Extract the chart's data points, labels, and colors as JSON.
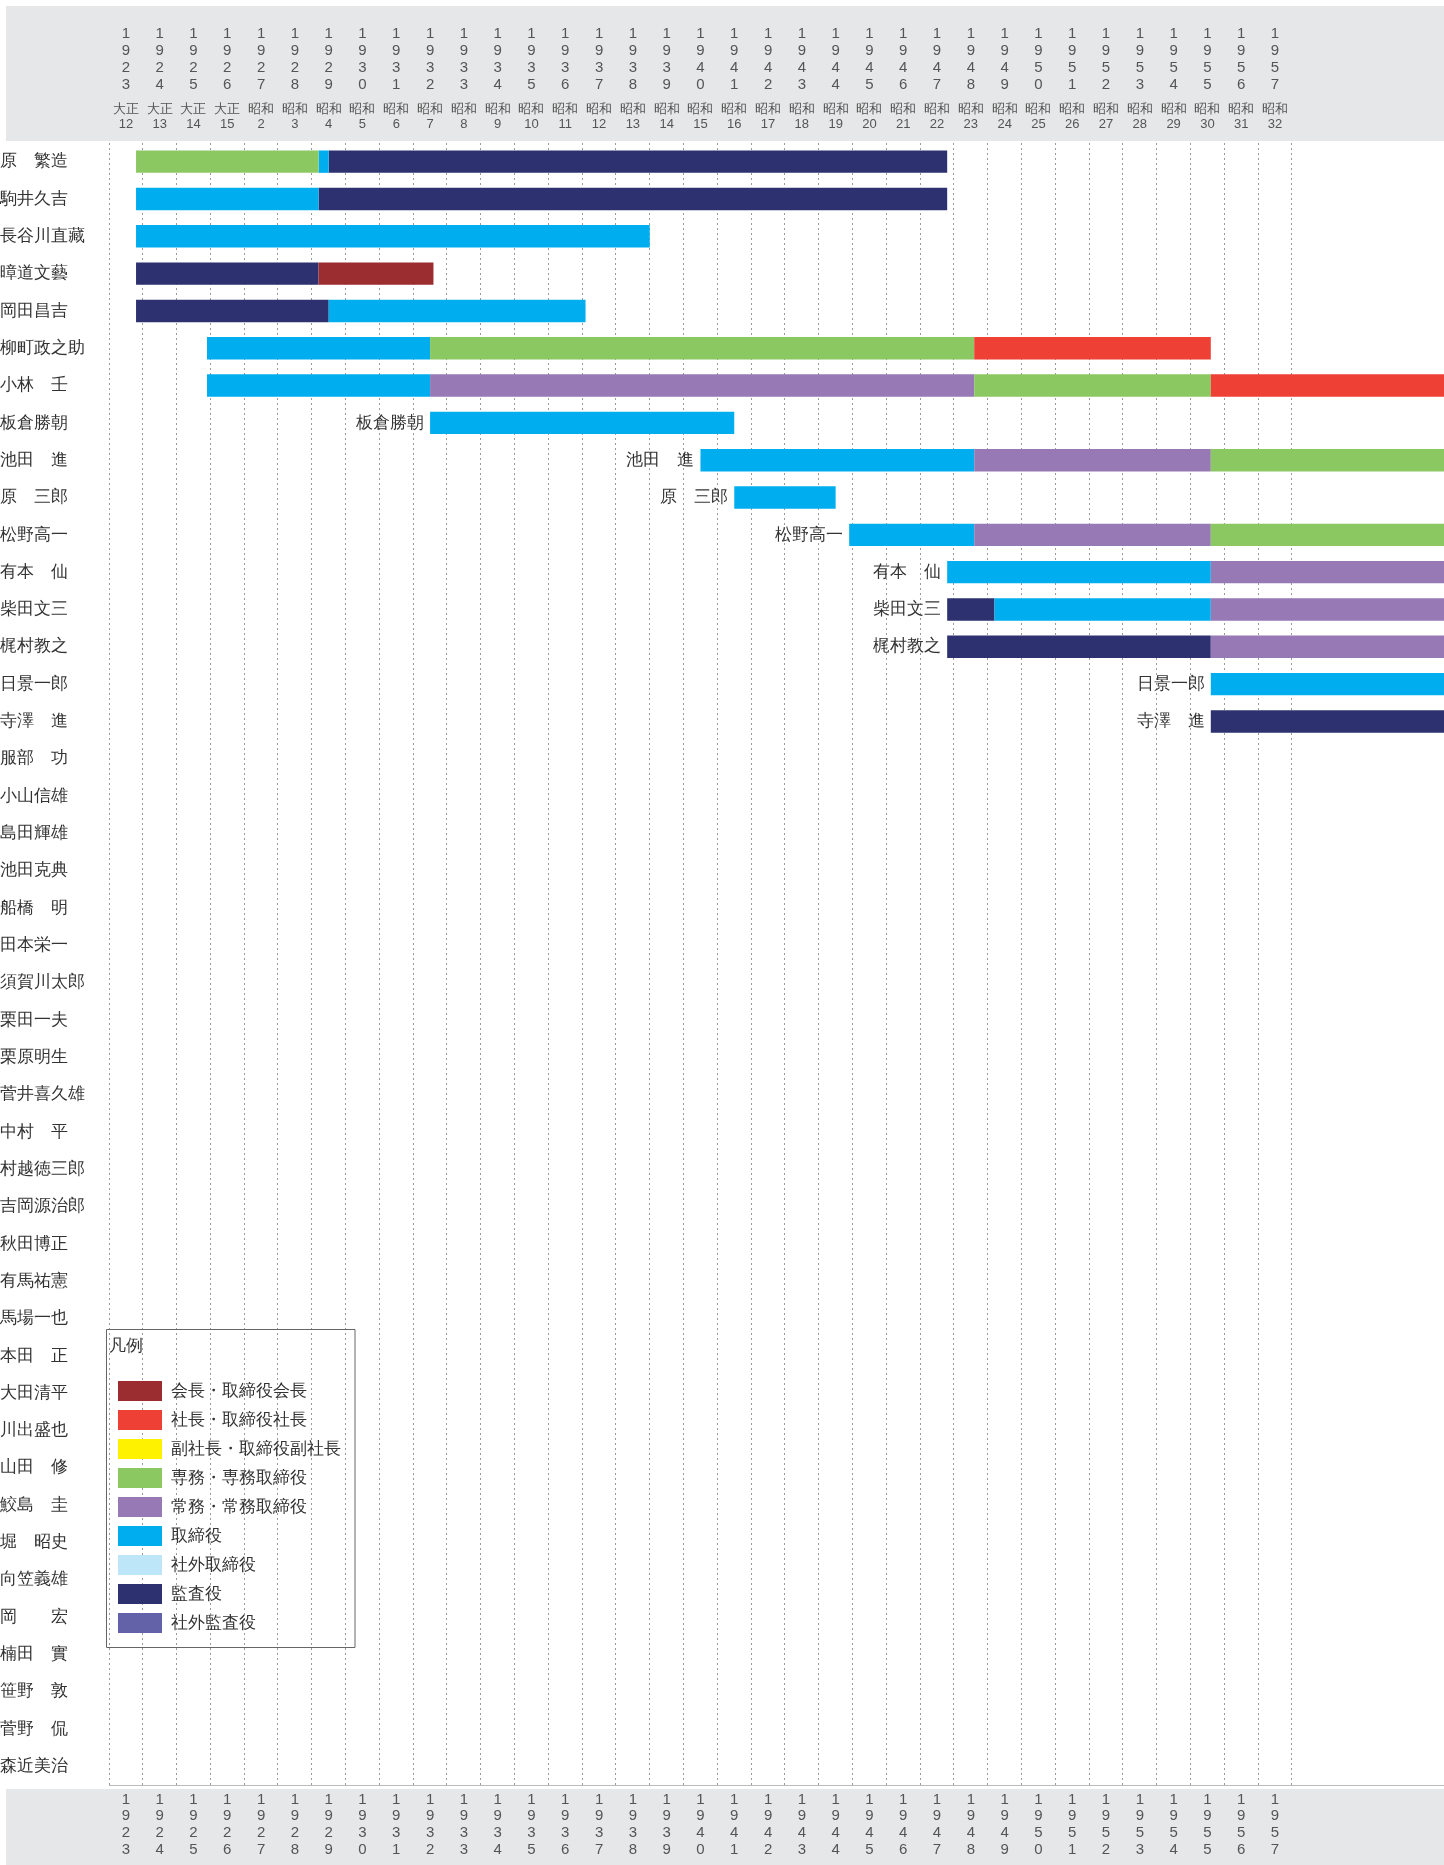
{
  "chart_data": {
    "type": "bar",
    "orientation": "horizontal",
    "legend": "bottom left",
    "legend_title": "凡例",
    "grid": "x",
    "categories": [
      "原　繁造",
      "駒井久吉",
      "長谷川直藏",
      "暲道文藝",
      "岡田昌吉",
      "柳町政之助",
      "小林　壬",
      "板倉勝朝",
      "池田　進",
      "原　三郎",
      "松野高一",
      "有本　仙",
      "柴田文三",
      "梶村教之",
      "日景一郎",
      "寺澤　進",
      "服部　功",
      "小山信雄",
      "島田輝雄",
      "池田克典",
      "船橋　明",
      "田本栄一",
      "須賀川太郎",
      "栗田一夫",
      "栗原明生",
      "菅井喜久雄",
      "中村　平",
      "村越徳三郎",
      "吉岡源治郎",
      "秋田博正",
      "有馬祐憲",
      "馬場一也",
      "本田　正",
      "大田清平",
      "川出盛也",
      "山田　修",
      "鮫島　圭",
      "堀　昭史",
      "向笠義雄",
      "岡　　宏",
      "楠田　實",
      "笹野　敦",
      "菅野　侃",
      "森近美治"
    ],
    "xlim": [
      1922.5,
      1962
    ],
    "xticks": [
      1923,
      1924,
      1925,
      1926,
      1927,
      1928,
      1929,
      1930,
      1931,
      1932,
      1933,
      1934,
      1935,
      1936,
      1937,
      1938,
      1939,
      1940,
      1941,
      1942,
      1943,
      1944,
      1945,
      1946,
      1947,
      1948,
      1949,
      1950,
      1951,
      1952,
      1953,
      1954,
      1955,
      1956,
      1957
    ],
    "x2lim": [
      1922.5,
      1962
    ],
    "x2ticks": [
      1923,
      1924,
      1925,
      1926,
      1927,
      1928,
      1929,
      1930,
      1931,
      1932,
      1933,
      1934,
      1935,
      1936,
      1937,
      1938,
      1939,
      1940,
      1941,
      1942,
      1943,
      1944,
      1945,
      1946,
      1947,
      1948,
      1949,
      1950,
      1951,
      1952,
      1953,
      1954,
      1955,
      1956,
      1957
    ],
    "series": [
      {
        "name": "会長・取締役会長",
        "color": "#9b2d30",
        "base": [
          null,
          null,
          null,
          1928.7,
          null,
          null,
          null,
          null,
          null,
          null,
          null,
          null,
          null,
          null,
          null,
          null,
          null,
          null,
          null,
          null,
          null,
          null,
          null,
          null,
          null,
          null,
          null,
          null,
          null,
          null,
          null,
          null,
          null,
          null,
          null,
          null,
          null,
          null,
          null,
          null,
          null,
          null,
          null,
          null
        ],
        "values": [
          null,
          null,
          null,
          3.4,
          null,
          null,
          null,
          null,
          null,
          null,
          null,
          null,
          null,
          null,
          null,
          null,
          null,
          null,
          null,
          null,
          null,
          null,
          null,
          null,
          null,
          null,
          null,
          null,
          null,
          null,
          null,
          null,
          null,
          null,
          null,
          null,
          null,
          null,
          null,
          null,
          null,
          null,
          null,
          null
        ]
      },
      {
        "name": "社長・取締役社長",
        "color": "#ee4035",
        "base": [
          null,
          null,
          null,
          null,
          null,
          1948.1,
          1955.1,
          null,
          null,
          null,
          null,
          null,
          null,
          null,
          null,
          null,
          null,
          null,
          null,
          null,
          null,
          null,
          null,
          null,
          null,
          null,
          null,
          null,
          null,
          null,
          null,
          null,
          null,
          null,
          null,
          null,
          null,
          null,
          null,
          null,
          null,
          null,
          null,
          null
        ],
        "values": [
          null,
          null,
          null,
          null,
          null,
          7.0,
          6.9,
          null,
          null,
          null,
          null,
          null,
          null,
          null,
          null,
          null,
          null,
          null,
          null,
          null,
          null,
          null,
          null,
          null,
          null,
          null,
          null,
          null,
          null,
          null,
          null,
          null,
          null,
          null,
          null,
          null,
          null,
          null,
          null,
          null,
          null,
          null,
          null,
          null
        ]
      },
      {
        "name": "副社長・取締役副社長",
        "color": "#fff200",
        "base": [
          null,
          null,
          null,
          null,
          null,
          null,
          null,
          null,
          null,
          null,
          null,
          null,
          null,
          null,
          null,
          null,
          null,
          null,
          null,
          null,
          null,
          null,
          null,
          null,
          null,
          null,
          null,
          null,
          null,
          null,
          null,
          null,
          null,
          null,
          null,
          null,
          null,
          null,
          null,
          null,
          null,
          null,
          null,
          null
        ],
        "values": [
          null,
          null,
          null,
          null,
          null,
          null,
          null,
          null,
          null,
          null,
          null,
          null,
          null,
          null,
          null,
          null,
          null,
          null,
          null,
          null,
          null,
          null,
          null,
          null,
          null,
          null,
          null,
          null,
          null,
          null,
          null,
          null,
          null,
          null,
          null,
          null,
          null,
          null,
          null,
          null,
          null,
          null,
          null,
          null
        ]
      },
      {
        "name": "専務・専務取締役",
        "color": "#8cc862",
        "base": [
          1923.3,
          null,
          null,
          null,
          null,
          1932.0,
          1948.1,
          null,
          1955.1,
          null,
          1955.1,
          null,
          null,
          null,
          null,
          null,
          null,
          null,
          null,
          null,
          null,
          null,
          null,
          null,
          null,
          null,
          null,
          null,
          null,
          null,
          null,
          null,
          null,
          null,
          null,
          null,
          null,
          null,
          null,
          null,
          null,
          null,
          null,
          null
        ],
        "values": [
          5.4,
          null,
          null,
          null,
          null,
          16.1,
          7.0,
          null,
          6.9,
          null,
          6.9,
          null,
          null,
          null,
          null,
          null,
          null,
          null,
          null,
          null,
          null,
          null,
          null,
          null,
          null,
          null,
          null,
          null,
          null,
          null,
          null,
          null,
          null,
          null,
          null,
          null,
          null,
          null,
          null,
          null,
          null,
          null,
          null,
          null
        ]
      },
      {
        "name": "常務・常務取締役",
        "color": "#9779b5",
        "base": [
          null,
          null,
          null,
          null,
          null,
          null,
          1932.0,
          null,
          1948.1,
          null,
          1948.1,
          1955.1,
          1955.1,
          1955.1,
          null,
          null,
          null,
          null,
          null,
          null,
          null,
          null,
          null,
          null,
          null,
          null,
          null,
          null,
          null,
          null,
          null,
          null,
          null,
          null,
          null,
          null,
          null,
          null,
          null,
          null,
          null,
          null,
          null,
          null
        ],
        "values": [
          null,
          null,
          null,
          null,
          null,
          null,
          16.1,
          null,
          7.0,
          null,
          7.0,
          6.9,
          6.9,
          6.9,
          null,
          null,
          null,
          null,
          null,
          null,
          null,
          null,
          null,
          null,
          null,
          null,
          null,
          null,
          null,
          null,
          null,
          null,
          null,
          null,
          null,
          null,
          null,
          null,
          null,
          null,
          null,
          null,
          null,
          null
        ]
      },
      {
        "name": "取締役",
        "color": "#00aeef",
        "base": [
          1928.7,
          1923.3,
          1923.3,
          null,
          1929.0,
          1925.4,
          1925.4,
          1932.0,
          1940.0,
          1941.0,
          1944.4,
          1947.3,
          1948.7,
          null,
          1955.1,
          null,
          null,
          null,
          null,
          null,
          null,
          null,
          null,
          null,
          null,
          null,
          null,
          null,
          null,
          null,
          null,
          null,
          null,
          null,
          null,
          null,
          null,
          null,
          null,
          null,
          null,
          null,
          null,
          null
        ],
        "values": [
          0.3,
          5.4,
          15.2,
          null,
          7.6,
          6.6,
          6.6,
          9.0,
          8.1,
          3.0,
          3.7,
          7.8,
          6.4,
          null,
          6.9,
          null,
          null,
          null,
          null,
          null,
          null,
          null,
          null,
          null,
          null,
          null,
          null,
          null,
          null,
          null,
          null,
          null,
          null,
          null,
          null,
          null,
          null,
          null,
          null,
          null,
          null,
          null,
          null,
          null
        ]
      },
      {
        "name": "社外取締役",
        "color": "#bde6f8",
        "base": [
          null,
          null,
          null,
          null,
          null,
          null,
          null,
          null,
          null,
          null,
          null,
          null,
          null,
          null,
          null,
          null,
          null,
          null,
          null,
          null,
          null,
          null,
          null,
          null,
          null,
          null,
          null,
          null,
          null,
          null,
          null,
          null,
          null,
          null,
          null,
          null,
          null,
          null,
          null,
          null,
          null,
          null,
          null,
          null
        ],
        "values": [
          null,
          null,
          null,
          null,
          null,
          null,
          null,
          null,
          null,
          null,
          null,
          null,
          null,
          null,
          null,
          null,
          null,
          null,
          null,
          null,
          null,
          null,
          null,
          null,
          null,
          null,
          null,
          null,
          null,
          null,
          null,
          null,
          null,
          null,
          null,
          null,
          null,
          null,
          null,
          null,
          null,
          null,
          null,
          null
        ]
      },
      {
        "name": "監査役",
        "color": "#2e3170",
        "base": [
          1929.0,
          1928.7,
          null,
          1923.3,
          1923.3,
          null,
          null,
          null,
          null,
          null,
          null,
          null,
          1947.3,
          1947.3,
          null,
          1955.1,
          null,
          null,
          null,
          null,
          null,
          null,
          null,
          null,
          null,
          null,
          null,
          null,
          null,
          null,
          null,
          null,
          null,
          null,
          null,
          null,
          null,
          null,
          null,
          null,
          null,
          null,
          null,
          null
        ],
        "values": [
          18.3,
          18.6,
          null,
          5.4,
          5.7,
          null,
          null,
          null,
          null,
          null,
          null,
          null,
          1.4,
          7.8,
          null,
          6.9,
          null,
          null,
          null,
          null,
          null,
          null,
          null,
          null,
          null,
          null,
          null,
          null,
          null,
          null,
          null,
          null,
          null,
          null,
          null,
          null,
          null,
          null,
          null,
          null,
          null,
          null,
          null,
          null
        ]
      },
      {
        "name": "社外監査役",
        "color": "#6361a8",
        "base": [
          null,
          null,
          null,
          null,
          null,
          null,
          null,
          null,
          null,
          null,
          null,
          null,
          null,
          null,
          null,
          null,
          null,
          null,
          null,
          null,
          null,
          null,
          null,
          null,
          null,
          null,
          null,
          null,
          null,
          null,
          null,
          null,
          null,
          null,
          null,
          null,
          null,
          null,
          null,
          null,
          null,
          null,
          null,
          null
        ],
        "values": [
          null,
          null,
          null,
          null,
          null,
          null,
          null,
          null,
          null,
          null,
          null,
          null,
          null,
          null,
          null,
          null,
          null,
          null,
          null,
          null,
          null,
          null,
          null,
          null,
          null,
          null,
          null,
          null,
          null,
          null,
          null,
          null,
          null,
          null,
          null,
          null,
          null,
          null,
          null,
          null,
          null,
          null,
          null,
          null
        ]
      }
    ],
    "annotations": [
      {
        "text": "板倉勝朝",
        "x": 1932.0,
        "y": "板倉勝朝"
      },
      {
        "text": "池田　進",
        "x": 1940.0,
        "y": "池田　進"
      },
      {
        "text": "原　三郎",
        "x": 1941.0,
        "y": "原　三郎"
      },
      {
        "text": "松野高一",
        "x": 1944.4,
        "y": "松野高一"
      },
      {
        "text": "有本　仙",
        "x": 1947.3,
        "y": "有本　仙"
      },
      {
        "text": "柴田文三",
        "x": 1947.3,
        "y": "柴田文三"
      },
      {
        "text": "梶村教之",
        "x": 1947.3,
        "y": "梶村教之"
      },
      {
        "text": "日景一郎",
        "x": 1955.1,
        "y": "日景一郎"
      },
      {
        "text": "寺澤　進",
        "x": 1955.1,
        "y": "寺澤　進"
      },
      "大正12",
      "大正13",
      "大正14",
      "大正15",
      "昭和2",
      "昭和3",
      "昭和4",
      "昭和5",
      "昭和6",
      "昭和7",
      "昭和8",
      "昭和9",
      "昭和10",
      "昭和11",
      "昭和12",
      "昭和13",
      "昭和14",
      "昭和15",
      "昭和16",
      "昭和17",
      "昭和18",
      "昭和19",
      "昭和20",
      "昭和21",
      "昭和22",
      "昭和23",
      "昭和24",
      "昭和25",
      "昭和26",
      "昭和27",
      "昭和28",
      "昭和29",
      "昭和30",
      "昭和31",
      "昭和32"
    ]
  }
}
